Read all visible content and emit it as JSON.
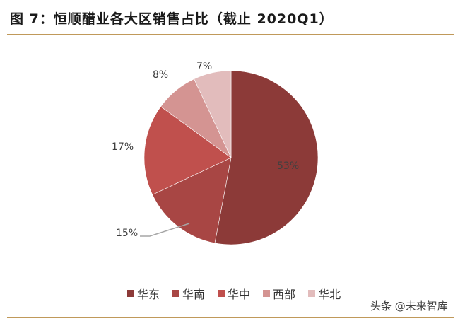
{
  "title": "图 7：恒顺醋业各大区销售占比（截止 2020Q1）",
  "watermark": "头条 @未来智库",
  "chart_data": {
    "type": "pie",
    "title": "图 7：恒顺醋业各大区销售占比（截止 2020Q1）",
    "categories": [
      "华东",
      "华南",
      "华中",
      "西部",
      "华北"
    ],
    "values": [
      53,
      15,
      17,
      8,
      7
    ],
    "labels": [
      "53%",
      "15%",
      "17%",
      "8%",
      "7%"
    ],
    "colors": [
      "#8c3a38",
      "#a84644",
      "#c0504d",
      "#d49492",
      "#e2bcbc"
    ],
    "start_angle": "12 o'clock, clockwise",
    "legend_position": "bottom"
  },
  "legend": [
    {
      "label": "华东",
      "color": "#8c3a38"
    },
    {
      "label": "华南",
      "color": "#a84644"
    },
    {
      "label": "华中",
      "color": "#c0504d"
    },
    {
      "label": "西部",
      "color": "#d49492"
    },
    {
      "label": "华北",
      "color": "#e2bcbc"
    }
  ]
}
